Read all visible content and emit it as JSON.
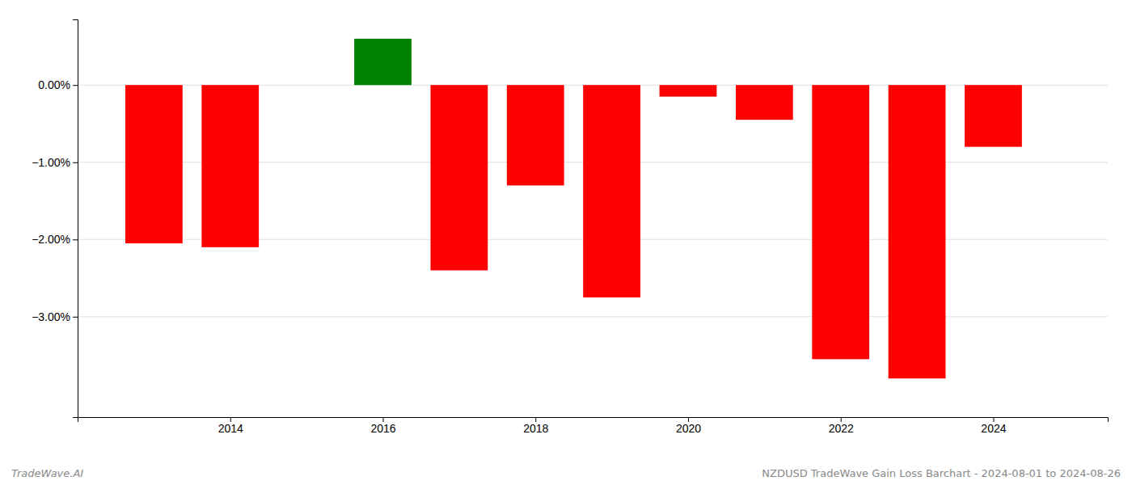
{
  "chart_data": {
    "type": "bar",
    "title": "NZDUSD TradeWave Gain Loss Barchart - 2024-08-01 to 2024-08-26",
    "annotations": [
      {
        "text": "TradeWave.AI"
      }
    ],
    "x": [
      2013,
      2014,
      2016,
      2017,
      2018,
      2019,
      2020,
      2021,
      2022,
      2023,
      2024
    ],
    "values": [
      -2.05,
      -2.1,
      0.6,
      -2.4,
      -1.3,
      -2.75,
      -0.15,
      -0.45,
      -3.55,
      -3.8,
      -0.8
    ],
    "colors": [
      "red",
      "red",
      "green",
      "red",
      "red",
      "red",
      "red",
      "red",
      "red",
      "red",
      "red"
    ],
    "xlim": [
      2012.0,
      2025.5
    ],
    "ylim": [
      -4.3,
      0.85
    ],
    "xticks": [
      2014,
      2016,
      2018,
      2020,
      2022,
      2024
    ],
    "yticks": [
      {
        "value": 0.0,
        "label": "0.00%"
      },
      {
        "value": -1.0,
        "label": "−1.00%"
      },
      {
        "value": -2.0,
        "label": "−2.00%"
      },
      {
        "value": -3.0,
        "label": "−3.00%"
      }
    ],
    "grid": true
  }
}
